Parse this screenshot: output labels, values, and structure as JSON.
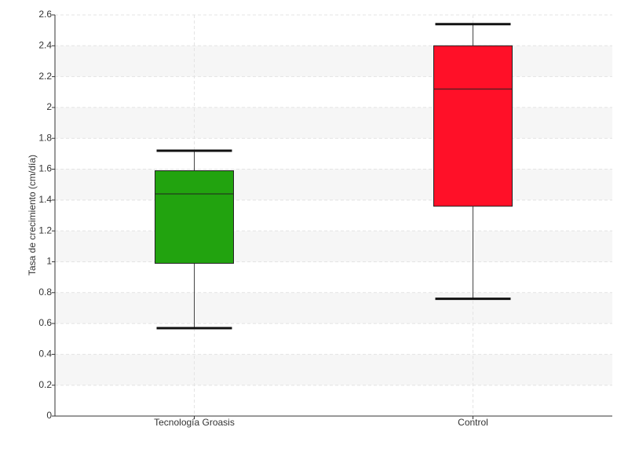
{
  "chart_data": {
    "type": "box",
    "y_label": "Tasa de crecimiento (cm/día)",
    "categories": [
      "Tecnología Groasis",
      "Control"
    ],
    "boxes": [
      {
        "min": 0.57,
        "q1": 0.99,
        "median": 1.44,
        "q3": 1.59,
        "max": 1.72,
        "color": "#22a30f"
      },
      {
        "min": 0.76,
        "q1": 1.36,
        "median": 2.12,
        "q3": 2.4,
        "max": 2.54,
        "color": "#ff1028"
      }
    ],
    "ylim": [
      0,
      2.6
    ],
    "yticks": [
      0,
      0.2,
      0.4,
      0.6,
      0.8,
      1,
      1.2,
      1.4,
      1.6,
      1.8,
      2,
      2.2,
      2.4,
      2.6
    ],
    "grid": true
  }
}
